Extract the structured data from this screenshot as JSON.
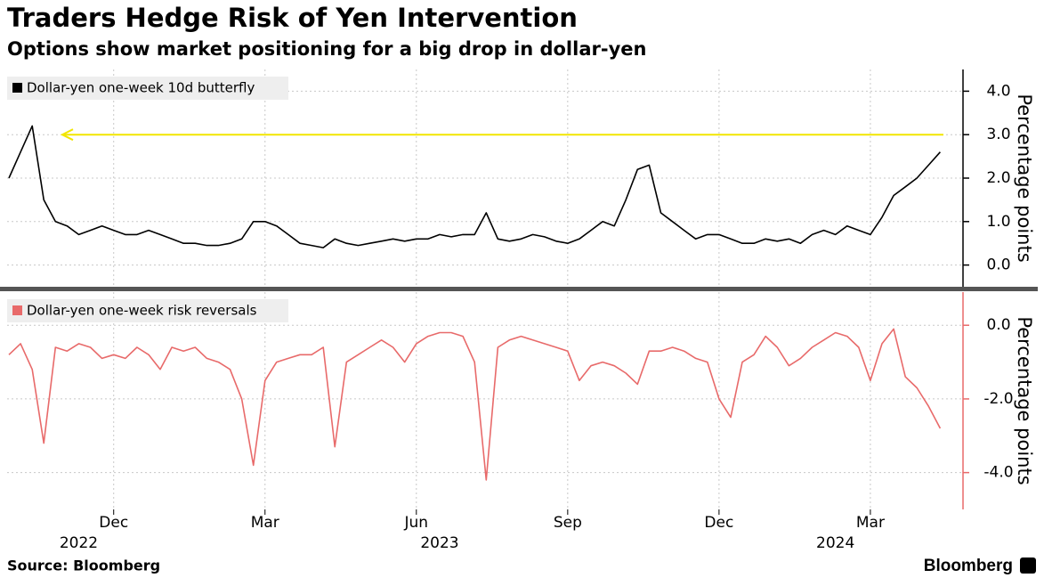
{
  "title": "Traders Hedge Risk of Yen Intervention",
  "subtitle": "Options show market positioning for a big drop in dollar-yen",
  "source": "Source: Bloomberg",
  "brand": "Bloomberg",
  "chart_data": [
    {
      "type": "line",
      "y_label": "Percentage points",
      "ylim": [
        -0.5,
        4.5
      ],
      "yticks": [
        {
          "value": 0,
          "label": "0.0"
        },
        {
          "value": 1,
          "label": "1.0"
        },
        {
          "value": 2,
          "label": "2.0"
        },
        {
          "value": 3,
          "label": "3.0"
        },
        {
          "value": 4,
          "label": "4.0"
        }
      ],
      "grid": true,
      "axis_color": "#000000",
      "reference_line": {
        "value": 3,
        "color": "#f2e600"
      },
      "series": [
        {
          "name": "Dollar-yen one-week 10d butterfly",
          "color": "#000000",
          "values": [
            2.0,
            2.6,
            3.2,
            1.5,
            1.0,
            0.9,
            0.7,
            0.8,
            0.9,
            0.8,
            0.7,
            0.7,
            0.8,
            0.7,
            0.6,
            0.5,
            0.5,
            0.45,
            0.45,
            0.5,
            0.6,
            1.0,
            1.0,
            0.9,
            0.7,
            0.5,
            0.45,
            0.4,
            0.6,
            0.5,
            0.45,
            0.5,
            0.55,
            0.6,
            0.55,
            0.6,
            0.6,
            0.7,
            0.65,
            0.7,
            0.7,
            1.2,
            0.6,
            0.55,
            0.6,
            0.7,
            0.65,
            0.55,
            0.5,
            0.6,
            0.8,
            1.0,
            0.9,
            1.5,
            2.2,
            2.3,
            1.2,
            1.0,
            0.8,
            0.6,
            0.7,
            0.7,
            0.6,
            0.5,
            0.5,
            0.6,
            0.55,
            0.6,
            0.5,
            0.7,
            0.8,
            0.7,
            0.9,
            0.8,
            0.7,
            1.1,
            1.6,
            1.8,
            2.0,
            2.3,
            2.6
          ]
        }
      ]
    },
    {
      "type": "line",
      "y_label": "Percentage points",
      "ylim": [
        -5,
        0.9
      ],
      "yticks": [
        {
          "value": 0,
          "label": "0.0"
        },
        {
          "value": -2,
          "label": "-2.0"
        },
        {
          "value": -4,
          "label": "-4.0"
        }
      ],
      "grid": true,
      "axis_color": "#e86a6a",
      "categories": [
        null,
        null,
        null,
        null,
        null,
        null,
        null,
        null,
        null,
        "Dec",
        null,
        null,
        null,
        null,
        null,
        null,
        null,
        null,
        null,
        null,
        null,
        null,
        "Mar",
        null,
        null,
        null,
        null,
        null,
        null,
        null,
        null,
        null,
        null,
        null,
        null,
        "Jun",
        null,
        null,
        null,
        null,
        null,
        null,
        null,
        null,
        null,
        null,
        null,
        null,
        "Sep",
        null,
        null,
        null,
        null,
        null,
        null,
        null,
        null,
        null,
        null,
        null,
        null,
        "Dec",
        null,
        null,
        null,
        null,
        null,
        null,
        null,
        null,
        null,
        null,
        null,
        null,
        "Mar",
        null,
        null,
        null,
        null,
        null,
        null
      ],
      "category_years": [
        null,
        null,
        null,
        null,
        null,
        null,
        "2022",
        null,
        null,
        null,
        null,
        null,
        null,
        null,
        null,
        null,
        null,
        null,
        null,
        null,
        null,
        null,
        null,
        null,
        null,
        null,
        null,
        null,
        null,
        null,
        null,
        null,
        null,
        null,
        null,
        null,
        null,
        "2023",
        null,
        null,
        null,
        null,
        null,
        null,
        null,
        null,
        null,
        null,
        null,
        null,
        null,
        null,
        null,
        null,
        null,
        null,
        null,
        null,
        null,
        null,
        null,
        null,
        null,
        null,
        null,
        null,
        null,
        null,
        null,
        null,
        null,
        "2024",
        null,
        null,
        null,
        null,
        null,
        null,
        null
      ],
      "series": [
        {
          "name": "Dollar-yen one-week risk reversals",
          "color": "#e86a6a",
          "values": [
            -0.8,
            -0.5,
            -1.2,
            -3.2,
            -0.6,
            -0.7,
            -0.5,
            -0.6,
            -0.9,
            -0.8,
            -0.9,
            -0.6,
            -0.8,
            -1.2,
            -0.6,
            -0.7,
            -0.6,
            -0.9,
            -1.0,
            -1.2,
            -2.0,
            -3.8,
            -1.5,
            -1.0,
            -0.9,
            -0.8,
            -0.8,
            -0.6,
            -3.3,
            -1.0,
            -0.8,
            -0.6,
            -0.4,
            -0.6,
            -1.0,
            -0.5,
            -0.3,
            -0.2,
            -0.2,
            -0.3,
            -1.0,
            -4.2,
            -0.6,
            -0.4,
            -0.3,
            -0.4,
            -0.5,
            -0.6,
            -0.7,
            -1.5,
            -1.1,
            -1.0,
            -1.1,
            -1.3,
            -1.6,
            -0.7,
            -0.7,
            -0.6,
            -0.7,
            -0.9,
            -1.0,
            -2.0,
            -2.5,
            -1.0,
            -0.8,
            -0.3,
            -0.6,
            -1.1,
            -0.9,
            -0.6,
            -0.4,
            -0.2,
            -0.3,
            -0.6,
            -1.5,
            -0.5,
            -0.1,
            -1.4,
            -1.7,
            -2.2,
            -2.8
          ]
        }
      ]
    }
  ]
}
